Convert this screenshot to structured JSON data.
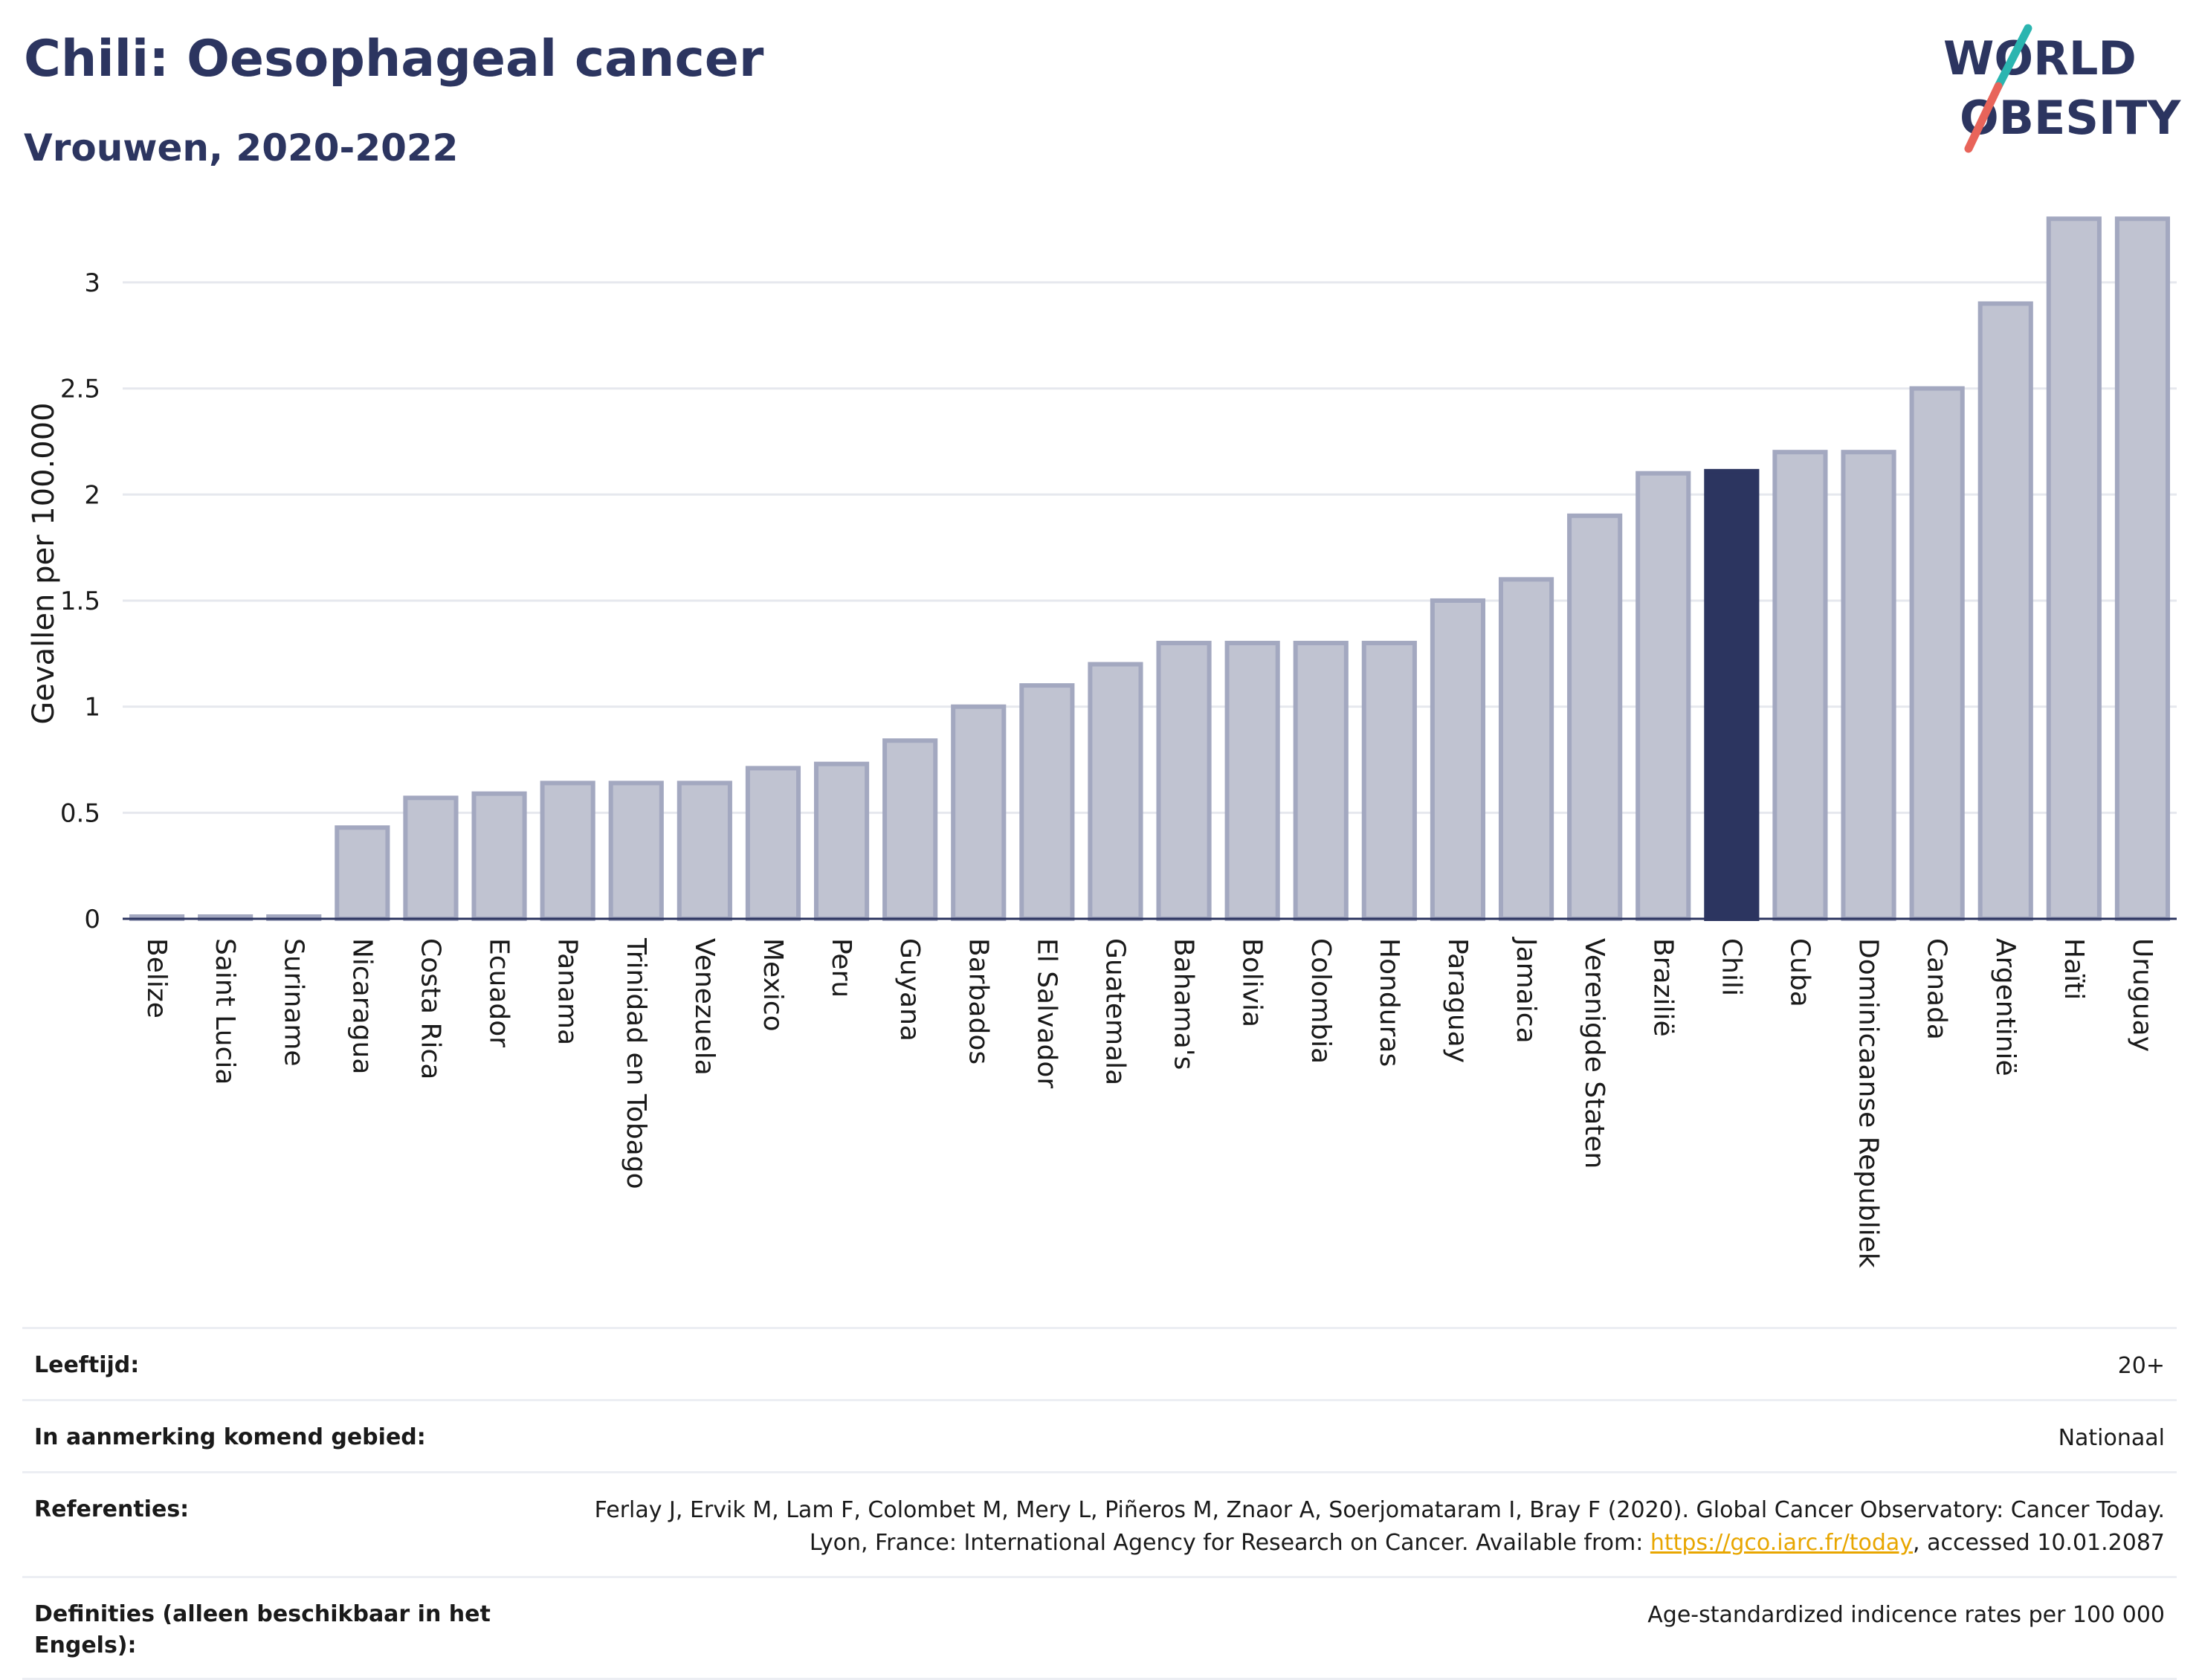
{
  "header": {
    "title": "Chili: Oesophageal cancer",
    "subtitle": "Vrouwen, 2020-2022"
  },
  "logo": {
    "line1": "WORLD",
    "line2": "OBESITY",
    "colors": {
      "text": "#2c3560",
      "slash_teal": "#2bb5b0",
      "slash_red": "#e8645a"
    }
  },
  "colors": {
    "bar_fill": "#c0c3d1",
    "bar_stroke": "#a3a8c0",
    "highlight_fill": "#2c3560",
    "grid": "#e6e8ee",
    "axis": "#2c3560"
  },
  "chart_data": {
    "type": "bar",
    "title": "Chili: Oesophageal cancer",
    "subtitle": "Vrouwen, 2020-2022",
    "xlabel": "",
    "ylabel": "Gevallen per 100.000",
    "ylim": [
      0,
      3.35
    ],
    "yticks": [
      0,
      0.5,
      1,
      1.5,
      2,
      2.5,
      3
    ],
    "ytick_labels": [
      "0",
      "0.5",
      "1",
      "1.5",
      "2",
      "2.5",
      "3"
    ],
    "grid": true,
    "highlight": "Chili",
    "categories": [
      "Belize",
      "Saint Lucia",
      "Suriname",
      "Nicaragua",
      "Costa Rica",
      "Ecuador",
      "Panama",
      "Trinidad en Tobago",
      "Venezuela",
      "Mexico",
      "Peru",
      "Guyana",
      "Barbados",
      "El Salvador",
      "Guatemala",
      "Bahama's",
      "Bolivia",
      "Colombia",
      "Honduras",
      "Paraguay",
      "Jamaica",
      "Verenigde Staten",
      "Brazilië",
      "Chili",
      "Cuba",
      "Dominicaanse Republiek",
      "Canada",
      "Argentinië",
      "Haïti",
      "Uruguay"
    ],
    "values": [
      0.01,
      0.01,
      0.01,
      0.43,
      0.57,
      0.59,
      0.64,
      0.64,
      0.64,
      0.71,
      0.73,
      0.84,
      1.0,
      1.1,
      1.2,
      1.3,
      1.3,
      1.3,
      1.3,
      1.5,
      1.6,
      1.9,
      2.1,
      2.11,
      2.2,
      2.2,
      2.5,
      2.9,
      3.3,
      3.3
    ]
  },
  "meta": {
    "rows": [
      {
        "label": "Leeftijd:",
        "value": "20+"
      },
      {
        "label": "In aanmerking komend gebied:",
        "value": "Nationaal"
      },
      {
        "label": "Referenties:",
        "value_before": "Ferlay J, Ervik M, Lam F, Colombet M, Mery L, Piñeros M, Znaor A, Soerjomataram I, Bray F (2020). Global Cancer Observatory: Cancer Today. Lyon, France: International Agency for Research on Cancer. Available from: ",
        "link": "https://gco.iarc.fr/today",
        "value_after": ", accessed 10.01.2087"
      },
      {
        "label": "Definities (alleen beschikbaar in het Engels):",
        "value": "Age-standardized indicence rates per 100 000"
      }
    ]
  }
}
